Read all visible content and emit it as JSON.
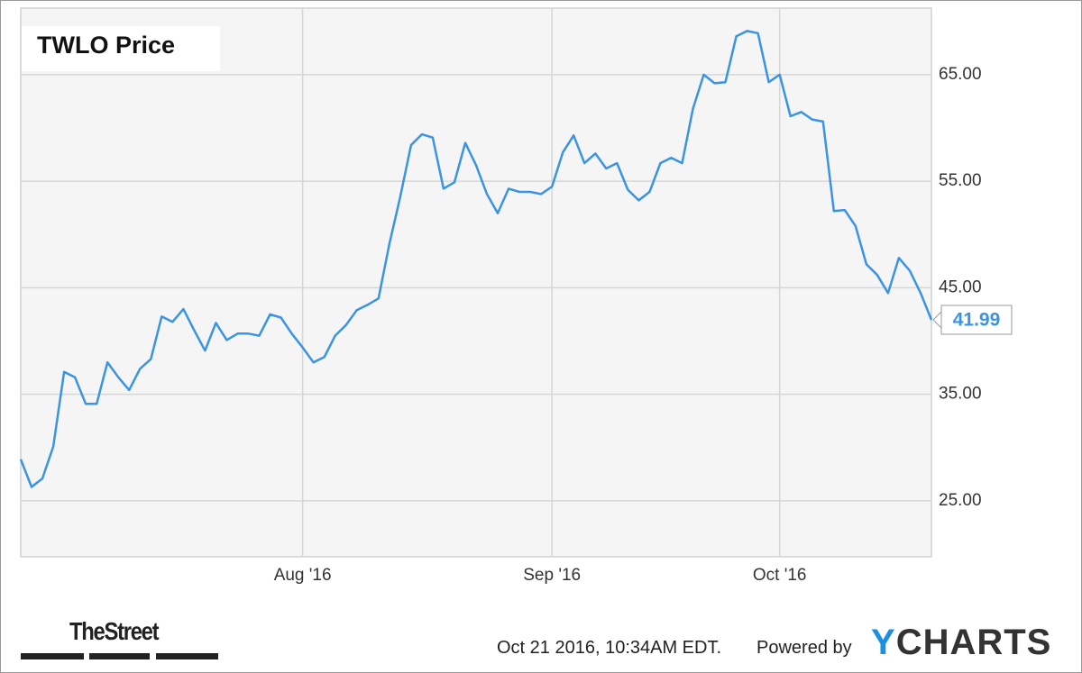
{
  "chart_data": {
    "type": "line",
    "title": "TWLO Price",
    "categories": [
      null,
      null,
      null,
      null,
      null,
      null,
      null,
      null,
      null,
      null,
      null,
      null,
      null,
      null,
      null,
      null,
      null,
      null,
      null,
      null,
      null,
      null,
      null,
      null,
      null,
      null,
      "Aug '16",
      null,
      null,
      null,
      null,
      null,
      null,
      null,
      null,
      null,
      null,
      null,
      null,
      null,
      null,
      null,
      null,
      null,
      null,
      null,
      null,
      null,
      null,
      "Sep '16",
      null,
      null,
      null,
      null,
      null,
      null,
      null,
      null,
      null,
      null,
      null,
      null,
      null,
      null,
      null,
      null,
      null,
      null,
      null,
      null,
      "Oct '16",
      null,
      null,
      null,
      null,
      null,
      null,
      null,
      null,
      null,
      null,
      null,
      null,
      null,
      null
    ],
    "series": [
      {
        "color": "#3a93e3",
        "values": [
          28.9,
          26.3,
          27.1,
          30.1,
          37.1,
          36.6,
          34.1,
          34.1,
          38.0,
          36.6,
          35.4,
          37.4,
          38.3,
          42.3,
          41.8,
          43.0,
          41.0,
          39.1,
          41.7,
          40.1,
          40.7,
          40.7,
          40.5,
          42.5,
          42.2,
          40.7,
          39.4,
          38.0,
          38.5,
          40.5,
          41.5,
          42.9,
          43.4,
          44.0,
          49.1,
          53.5,
          58.4,
          59.4,
          59.1,
          54.3,
          54.9,
          58.6,
          56.5,
          53.8,
          52.0,
          54.3,
          54.0,
          54.0,
          53.8,
          54.5,
          57.7,
          59.3,
          56.7,
          57.6,
          56.2,
          56.7,
          54.2,
          53.2,
          54.0,
          56.7,
          57.2,
          56.7,
          61.8,
          65.0,
          64.2,
          64.3,
          68.6,
          69.1,
          68.9,
          64.3,
          65.0,
          61.1,
          61.5,
          60.8,
          60.6,
          52.2,
          52.3,
          50.8,
          47.2,
          46.2,
          44.5,
          47.8,
          46.6,
          44.5,
          41.99
        ]
      }
    ],
    "ylim": [
      19.75,
      71.25
    ],
    "yticks": [
      {
        "value": 25,
        "label": "25.00"
      },
      {
        "value": 35,
        "label": "35.00"
      },
      {
        "value": 45,
        "label": "45.00"
      },
      {
        "value": 55,
        "label": "55.00"
      },
      {
        "value": 65,
        "label": "65.00"
      }
    ],
    "grid": true,
    "footer": {
      "source_logo": "TheStreet",
      "timestamp": "Oct 21 2016, 10:34AM EDT.",
      "powered_by": "Powered by",
      "brand": "YCHARTS"
    }
  }
}
